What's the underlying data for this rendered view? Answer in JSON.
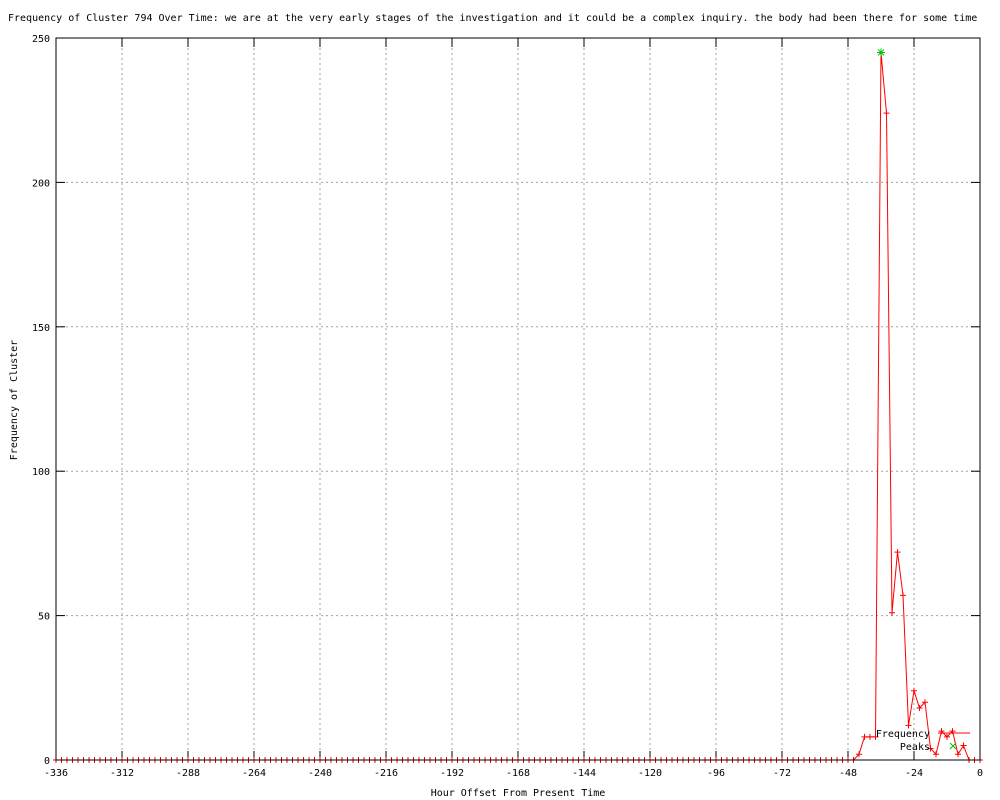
{
  "chart_data": {
    "type": "line",
    "title": "Frequency of Cluster 794 Over Time: we are at the very early stages of the investigation and it could be a complex inquiry. the body had been there for some time",
    "xlabel": "Hour Offset From Present Time",
    "ylabel": "Frequency of Cluster",
    "xlim": [
      -336,
      0
    ],
    "ylim": [
      0,
      250
    ],
    "xticks": [
      -336,
      -312,
      -288,
      -264,
      -240,
      -216,
      -192,
      -168,
      -144,
      -120,
      -96,
      -72,
      -48,
      -24,
      0
    ],
    "yticks": [
      0,
      50,
      100,
      150,
      200,
      250
    ],
    "grid": true,
    "legend_position": "bottom-right",
    "series": [
      {
        "name": "Frequency",
        "color": "#ff0000",
        "style": "linespoints",
        "points": [
          [
            -48,
            0
          ],
          [
            -46,
            0
          ],
          [
            -44,
            2
          ],
          [
            -42,
            8
          ],
          [
            -40,
            8
          ],
          [
            -38,
            8
          ],
          [
            -36,
            245
          ],
          [
            -34,
            224
          ],
          [
            -32,
            51
          ],
          [
            -30,
            72
          ],
          [
            -28,
            57
          ],
          [
            -26,
            12
          ],
          [
            -24,
            24
          ],
          [
            -22,
            18
          ],
          [
            -20,
            20
          ],
          [
            -18,
            4
          ],
          [
            -16,
            2
          ],
          [
            -14,
            10
          ],
          [
            -12,
            8
          ],
          [
            -10,
            10
          ],
          [
            -8,
            2
          ],
          [
            -6,
            5
          ],
          [
            -4,
            0
          ],
          [
            -2,
            0
          ],
          [
            0,
            0
          ]
        ]
      },
      {
        "name": "Peaks",
        "color": "#00c000",
        "style": "points",
        "points": [
          [
            -36,
            245
          ]
        ]
      }
    ]
  }
}
